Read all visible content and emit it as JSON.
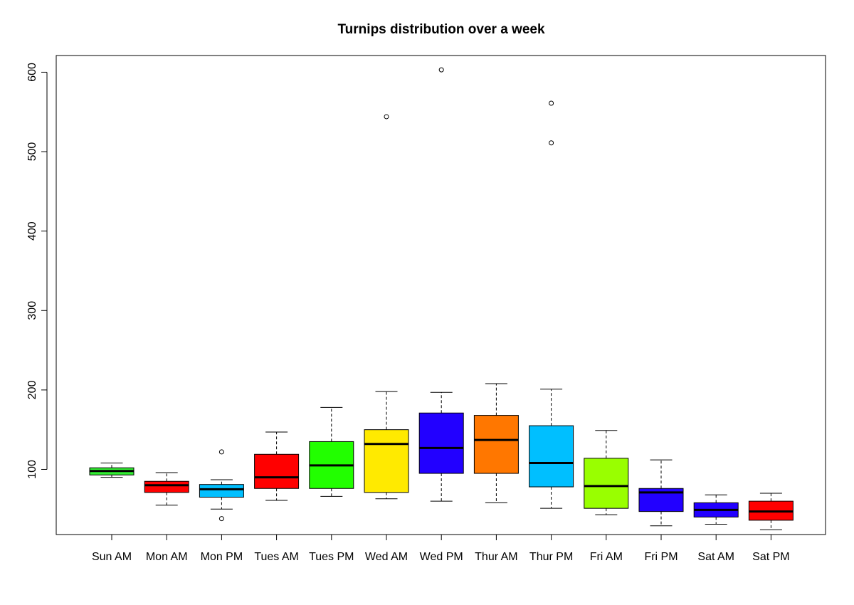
{
  "chart_data": {
    "type": "boxplot",
    "title": "Turnips distribution over a week",
    "xlabel": "",
    "ylabel": "",
    "ylim": [
      18,
      621
    ],
    "yticks": [
      100,
      200,
      300,
      400,
      500,
      600
    ],
    "categories": [
      "Sun AM",
      "Mon AM",
      "Mon PM",
      "Tues AM",
      "Tues PM",
      "Wed AM",
      "Wed PM",
      "Thur AM",
      "Thur PM",
      "Fri AM",
      "Fri PM",
      "Sat AM",
      "Sat PM"
    ],
    "boxes": [
      {
        "label": "Sun AM",
        "color": "#33ee33",
        "whisker_low": 90,
        "q1": 93,
        "median": 98,
        "q3": 102,
        "whisker_high": 108,
        "outliers": []
      },
      {
        "label": "Mon AM",
        "color": "#ff0000",
        "whisker_low": 55,
        "q1": 71,
        "median": 80,
        "q3": 85,
        "whisker_high": 96,
        "outliers": []
      },
      {
        "label": "Mon PM",
        "color": "#00bfff",
        "whisker_low": 50,
        "q1": 65,
        "median": 75,
        "q3": 81,
        "whisker_high": 87,
        "outliers": [
          38,
          122
        ]
      },
      {
        "label": "Tues AM",
        "color": "#ff0000",
        "whisker_low": 61,
        "q1": 76,
        "median": 90,
        "q3": 119,
        "whisker_high": 147,
        "outliers": []
      },
      {
        "label": "Tues PM",
        "color": "#22ff00",
        "whisker_low": 66,
        "q1": 76,
        "median": 105,
        "q3": 135,
        "whisker_high": 178,
        "outliers": []
      },
      {
        "label": "Wed AM",
        "color": "#ffea00",
        "whisker_low": 63,
        "q1": 71,
        "median": 132,
        "q3": 150,
        "whisker_high": 198,
        "outliers": [
          544
        ]
      },
      {
        "label": "Wed PM",
        "color": "#2200ff",
        "whisker_low": 60,
        "q1": 95,
        "median": 127,
        "q3": 171,
        "whisker_high": 197,
        "outliers": [
          603
        ]
      },
      {
        "label": "Thur AM",
        "color": "#ff7700",
        "whisker_low": 58,
        "q1": 95,
        "median": 137,
        "q3": 168,
        "whisker_high": 208,
        "outliers": []
      },
      {
        "label": "Thur PM",
        "color": "#00bfff",
        "whisker_low": 51,
        "q1": 78,
        "median": 108,
        "q3": 155,
        "whisker_high": 201,
        "outliers": [
          511,
          561
        ]
      },
      {
        "label": "Fri AM",
        "color": "#99ff00",
        "whisker_low": 43,
        "q1": 51,
        "median": 79,
        "q3": 114,
        "whisker_high": 149,
        "outliers": []
      },
      {
        "label": "Fri PM",
        "color": "#2200ff",
        "whisker_low": 29,
        "q1": 47,
        "median": 71,
        "q3": 76,
        "whisker_high": 112,
        "outliers": []
      },
      {
        "label": "Sat AM",
        "color": "#2200ff",
        "whisker_low": 31,
        "q1": 40,
        "median": 49,
        "q3": 58,
        "whisker_high": 68,
        "outliers": []
      },
      {
        "label": "Sat PM",
        "color": "#ff0000",
        "whisker_low": 24,
        "q1": 36,
        "median": 47,
        "q3": 60,
        "whisker_high": 70,
        "outliers": []
      }
    ],
    "grid": false,
    "legend": "none"
  }
}
